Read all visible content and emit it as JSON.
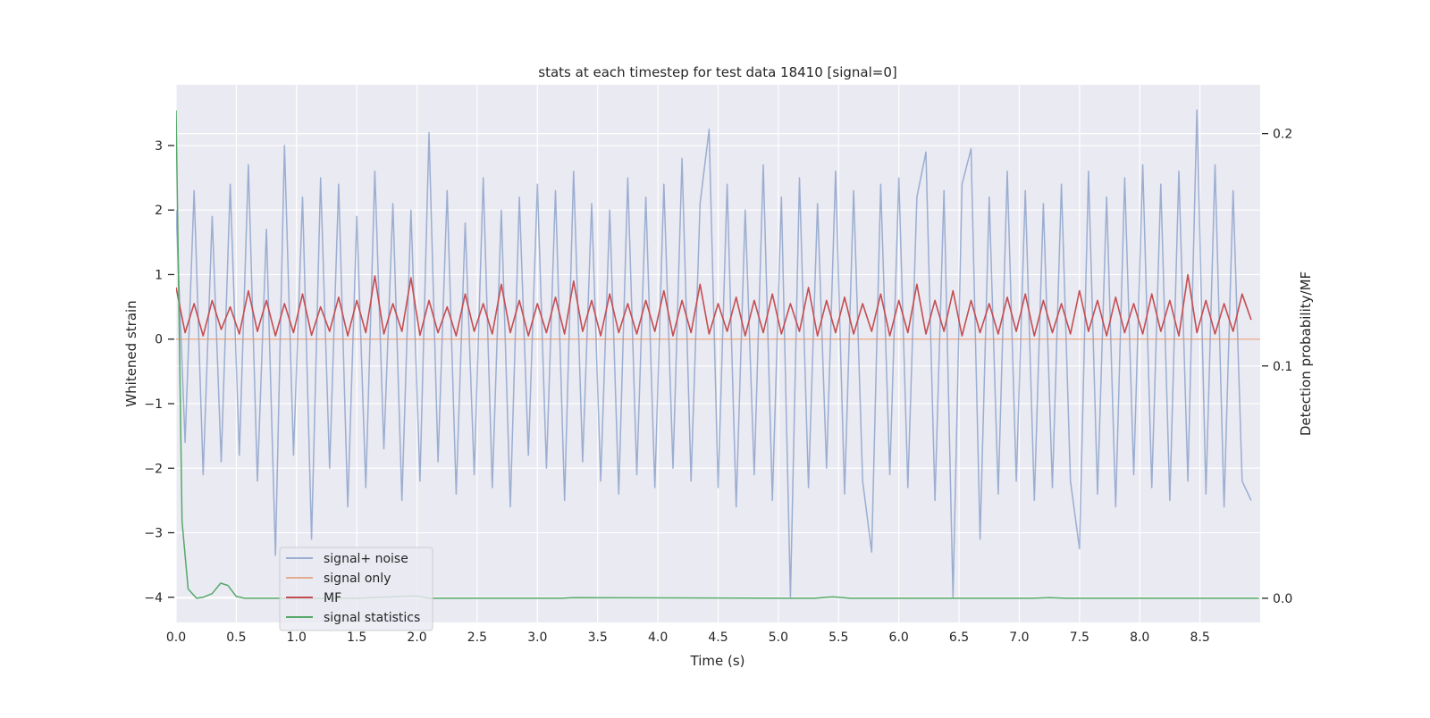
{
  "chart_data": {
    "type": "line",
    "title": "stats at each timestep for test data 18410 [signal=0]",
    "xlabel": "Time (s)",
    "ylabel": "Whitened strain",
    "ylabel_right": "Detection probability/MF",
    "xlim": [
      0,
      9.0
    ],
    "ylim": [
      -4.39,
      3.94
    ],
    "ylim_right": [
      -0.0104,
      0.221
    ],
    "xticks": [
      "0.0",
      "0.5",
      "1.0",
      "1.5",
      "2.0",
      "2.5",
      "3.0",
      "3.5",
      "4.0",
      "4.5",
      "5.0",
      "5.5",
      "6.0",
      "6.5",
      "7.0",
      "7.5",
      "8.0",
      "8.5"
    ],
    "yticks": [
      "3",
      "2",
      "1",
      "0",
      "−1",
      "−2",
      "−3",
      "−4"
    ],
    "yticks_right": [
      "0.2",
      "0.1",
      "0.0"
    ],
    "grid": true,
    "legend_position": "lower-left",
    "background": "#eaeaf2",
    "series": [
      {
        "name": "signal+ noise",
        "axis": "left",
        "color": "#4c72b0",
        "alpha": 0.5,
        "x_start": 0,
        "x_step": 0.075,
        "values": [
          2.0,
          -1.6,
          2.3,
          -2.1,
          1.9,
          -1.9,
          2.4,
          -1.8,
          2.7,
          -2.2,
          1.7,
          -3.35,
          3.0,
          -1.8,
          2.2,
          -3.1,
          2.5,
          -2.0,
          2.4,
          -2.6,
          1.9,
          -2.3,
          2.6,
          -1.7,
          2.1,
          -2.5,
          2.0,
          -2.2,
          3.2,
          -1.9,
          2.3,
          -2.4,
          1.8,
          -2.1,
          2.5,
          -2.3,
          2.0,
          -2.6,
          2.2,
          -1.8,
          2.4,
          -2.0,
          2.3,
          -2.5,
          2.6,
          -1.9,
          2.1,
          -2.2,
          2.0,
          -2.4,
          2.5,
          -2.1,
          2.2,
          -2.3,
          2.4,
          -2.0,
          2.8,
          -2.2,
          2.1,
          3.25,
          -2.3,
          2.4,
          -2.6,
          2.0,
          -2.1,
          2.7,
          -2.5,
          2.2,
          -4.0,
          2.5,
          -2.3,
          2.1,
          -2.0,
          2.6,
          -2.4,
          2.3,
          -2.2,
          -3.3,
          2.4,
          -2.1,
          2.5,
          -2.3,
          2.2,
          2.9,
          -2.5,
          2.3,
          -4.0,
          2.4,
          2.95,
          -3.1,
          2.2,
          -2.4,
          2.6,
          -2.2,
          2.3,
          -2.5,
          2.1,
          -2.3,
          2.4,
          -2.2,
          -3.25,
          2.6,
          -2.4,
          2.2,
          -2.6,
          2.5,
          -2.1,
          2.7,
          -2.3,
          2.4,
          -2.5,
          2.6,
          -2.2,
          3.55,
          -2.4,
          2.7,
          -2.6,
          2.3,
          -2.2,
          -2.5
        ]
      },
      {
        "name": "signal only",
        "axis": "left",
        "color": "#dd8452",
        "alpha": 0.6,
        "x": [
          0,
          9.0
        ],
        "values": [
          0,
          0
        ]
      },
      {
        "name": "MF",
        "axis": "left",
        "color": "#c44e52",
        "alpha": 1,
        "x_start": 0,
        "x_step": 0.075,
        "values": [
          0.8,
          0.1,
          0.55,
          0.05,
          0.6,
          0.15,
          0.5,
          0.08,
          0.75,
          0.12,
          0.6,
          0.05,
          0.55,
          0.1,
          0.7,
          0.06,
          0.5,
          0.12,
          0.65,
          0.05,
          0.6,
          0.1,
          0.98,
          0.08,
          0.55,
          0.12,
          0.95,
          0.06,
          0.6,
          0.1,
          0.5,
          0.05,
          0.7,
          0.12,
          0.55,
          0.08,
          0.85,
          0.1,
          0.6,
          0.05,
          0.55,
          0.1,
          0.65,
          0.08,
          0.9,
          0.12,
          0.6,
          0.05,
          0.7,
          0.1,
          0.55,
          0.08,
          0.6,
          0.12,
          0.75,
          0.05,
          0.6,
          0.1,
          0.85,
          0.08,
          0.55,
          0.12,
          0.65,
          0.05,
          0.6,
          0.1,
          0.7,
          0.08,
          0.55,
          0.12,
          0.8,
          0.05,
          0.6,
          0.1,
          0.65,
          0.08,
          0.55,
          0.12,
          0.7,
          0.05,
          0.6,
          0.1,
          0.85,
          0.08,
          0.6,
          0.12,
          0.75,
          0.05,
          0.6,
          0.1,
          0.55,
          0.08,
          0.65,
          0.12,
          0.7,
          0.05,
          0.6,
          0.1,
          0.55,
          0.08,
          0.75,
          0.12,
          0.6,
          0.05,
          0.65,
          0.1,
          0.55,
          0.08,
          0.7,
          0.12,
          0.6,
          0.05,
          1.0,
          0.1,
          0.6,
          0.08,
          0.55,
          0.12,
          0.7,
          0.3
        ]
      },
      {
        "name": "signal statistics",
        "axis": "right",
        "color": "#55a868",
        "alpha": 1,
        "x": [
          0,
          0.05,
          0.1,
          0.17,
          0.23,
          0.3,
          0.37,
          0.43,
          0.5,
          0.57,
          1.5,
          2.0,
          2.1,
          3.2,
          3.3,
          5.3,
          5.45,
          5.6,
          7.1,
          7.25,
          7.4,
          8.99
        ],
        "values": [
          0.21,
          0.033,
          0.004,
          0.0,
          0.0005,
          0.002,
          0.0065,
          0.0055,
          0.0008,
          0.0,
          0.0,
          0.001,
          0.0,
          0.0,
          0.0003,
          0.0,
          0.0006,
          0.0,
          0.0,
          0.0003,
          0.0,
          0.0
        ]
      }
    ]
  }
}
